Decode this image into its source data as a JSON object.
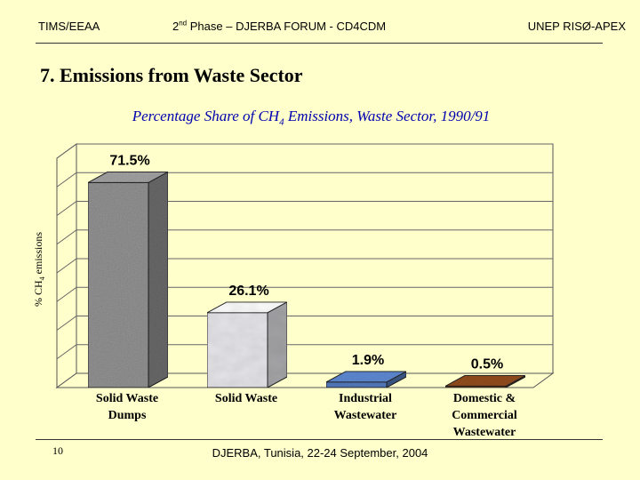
{
  "header": {
    "left": "TIMS/EEAA",
    "center_pre": "2",
    "center_sup": "nd",
    "center_post": " Phase – DJERBA FORUM - CD4CDM",
    "right": "UNEP RISØ-APEX"
  },
  "slide_title": "7. Emissions from Waste Sector",
  "footer": {
    "page_number": "10",
    "text": "DJERBA, Tunisia,  22-24 September, 2004"
  },
  "colors": {
    "background": "#FFFFCC",
    "chart_title": "#0000B0",
    "bar_solid_waste_dumps": "#9A9A9A",
    "bar_solid_waste": "#E8E8EC",
    "bar_industrial_wastewater": "#5A82C8",
    "bar_domestic_commercial_wastewater": "#8B4A1E"
  },
  "chart_data": {
    "type": "bar",
    "title_pre": "Percentage Share of CH",
    "title_sub": "4",
    "title_post": " Emissions,  Waste Sector, 1990/91",
    "ylabel_pre": "% CH",
    "ylabel_sub": "4",
    "ylabel_post": " emissions",
    "ylim": [
      0,
      80
    ],
    "grid": true,
    "categories": [
      [
        "Solid Waste",
        "Dumps"
      ],
      [
        "Solid Waste"
      ],
      [
        "Industrial",
        "Wastewater"
      ],
      [
        "Domestic &",
        "Commercial",
        "Wastewater"
      ]
    ],
    "values": [
      71.5,
      26.1,
      1.9,
      0.5
    ],
    "data_labels": [
      "71.5%",
      "26.1%",
      "1.9%",
      "0.5%"
    ]
  }
}
